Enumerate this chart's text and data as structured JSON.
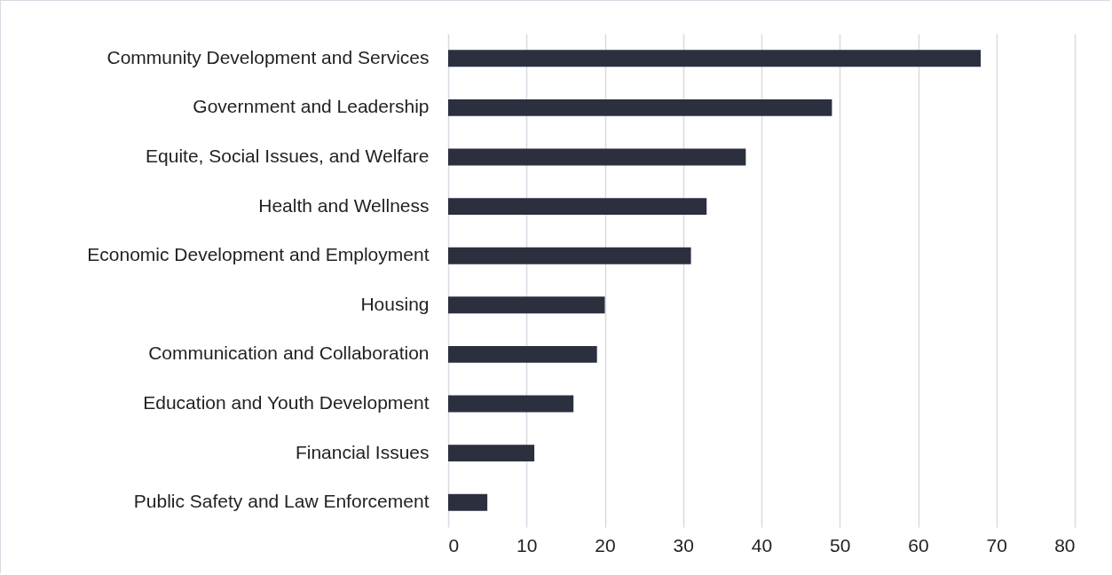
{
  "chart_data": {
    "type": "bar",
    "orientation": "horizontal",
    "categories": [
      "Community Development and Services",
      "Government and Leadership",
      "Equite, Social Issues, and Welfare",
      "Health and Wellness",
      "Economic Development and Employment",
      "Housing",
      "Communication and Collaboration",
      "Education and Youth Development",
      "Financial Issues",
      "Public Safety and Law Enforcement"
    ],
    "values": [
      68,
      49,
      38,
      33,
      31,
      20,
      19,
      16,
      11,
      5
    ],
    "color": "#2b2f3e",
    "xlim": [
      0,
      80
    ],
    "xticks": [
      0,
      10,
      20,
      30,
      40,
      50,
      60,
      70,
      80
    ],
    "grid": "x"
  }
}
